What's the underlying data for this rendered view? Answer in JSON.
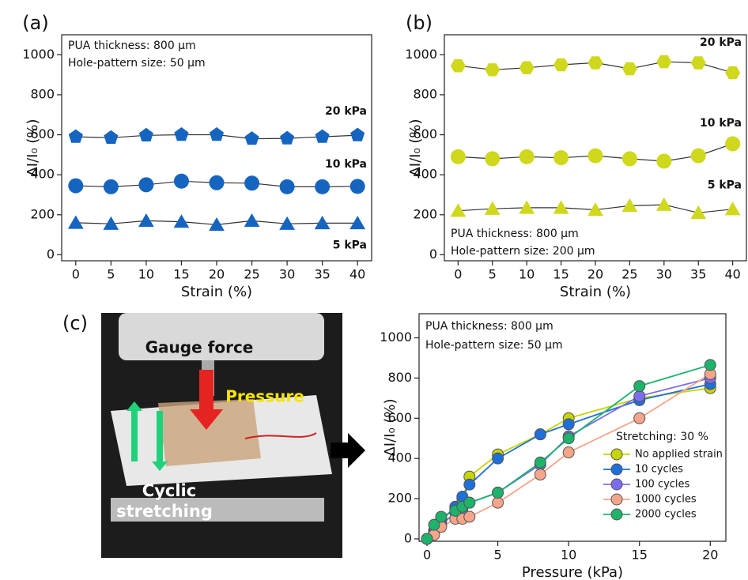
{
  "chart_data": [
    {
      "type": "line",
      "panel": "(a)",
      "xlabel": "Strain (%)",
      "ylabel": "ΔI/I₀ (%)",
      "annotations": [
        "PUA thickness: 800 μm",
        "Hole-pattern size: 50 μm"
      ],
      "x": [
        0,
        5,
        10,
        15,
        20,
        25,
        30,
        35,
        40
      ],
      "xlim": [
        -2,
        42
      ],
      "ylim": [
        -30,
        1100
      ],
      "xticks": [
        0,
        5,
        10,
        15,
        20,
        25,
        30,
        35,
        40
      ],
      "yticks": [
        0,
        200,
        400,
        600,
        800,
        1000
      ],
      "line_color": "#333333",
      "series": [
        {
          "name": "20 kPa",
          "color": "#1565c0",
          "marker": "pentagon",
          "values": [
            590,
            585,
            597,
            600,
            600,
            580,
            582,
            590,
            598
          ]
        },
        {
          "name": "10 kPa",
          "color": "#1565c0",
          "marker": "circle",
          "values": [
            345,
            340,
            350,
            368,
            360,
            358,
            340,
            340,
            342
          ]
        },
        {
          "name": "5 kPa",
          "color": "#1565c0",
          "marker": "triangle",
          "values": [
            160,
            155,
            170,
            165,
            150,
            170,
            155,
            158,
            158
          ]
        }
      ]
    },
    {
      "type": "line",
      "panel": "(b)",
      "xlabel": "Strain (%)",
      "ylabel": "ΔI/I₀ (%)",
      "annotations": [
        "PUA thickness: 800 μm",
        "Hole-pattern size: 200 μm"
      ],
      "x": [
        0,
        5,
        10,
        15,
        20,
        25,
        30,
        35,
        40
      ],
      "xlim": [
        -2,
        42
      ],
      "ylim": [
        -30,
        1100
      ],
      "xticks": [
        0,
        5,
        10,
        15,
        20,
        25,
        30,
        35,
        40
      ],
      "yticks": [
        0,
        200,
        400,
        600,
        800,
        1000
      ],
      "line_color": "#333333",
      "series": [
        {
          "name": "20 kPa",
          "color": "#cfd81c",
          "marker": "hexagon",
          "values": [
            945,
            925,
            935,
            950,
            960,
            930,
            965,
            960,
            910
          ]
        },
        {
          "name": "10 kPa",
          "color": "#cfd81c",
          "marker": "circle",
          "values": [
            490,
            480,
            490,
            485,
            495,
            480,
            468,
            495,
            555
          ]
        },
        {
          "name": "5 kPa",
          "color": "#cfd81c",
          "marker": "triangle",
          "values": [
            220,
            230,
            235,
            235,
            225,
            245,
            250,
            210,
            228
          ]
        }
      ]
    },
    {
      "type": "line",
      "panel": "(c)",
      "xlabel": "Pressure (kPa)",
      "ylabel": "ΔI/I₀ (%)",
      "annotations": [
        "PUA thickness: 800 μm",
        "Hole-pattern size: 50 μm"
      ],
      "legend_title": "Stretching: 30 %",
      "legend": "lower right",
      "x": [
        0,
        0.5,
        1,
        2,
        2.5,
        3,
        5,
        8,
        10,
        15,
        20
      ],
      "xlim": [
        -0.56,
        21.1
      ],
      "ylim": [
        -12,
        1120
      ],
      "xticks": [
        0,
        5,
        10,
        15,
        20
      ],
      "yticks": [
        0,
        200,
        400,
        600,
        800,
        1000
      ],
      "series": [
        {
          "name": "No applied strain",
          "color": "#c8d400",
          "marker": "circle",
          "values": [
            0,
            40,
            100,
            150,
            200,
            310,
            420,
            520,
            600,
            700,
            750
          ]
        },
        {
          "name": "10 cycles",
          "color": "#1e6fd9",
          "marker": "circle",
          "values": [
            0,
            40,
            90,
            160,
            210,
            270,
            400,
            520,
            570,
            690,
            770
          ]
        },
        {
          "name": "100 cycles",
          "color": "#7b6cf0",
          "marker": "circle",
          "values": [
            0,
            30,
            70,
            130,
            150,
            180,
            230,
            370,
            510,
            710,
            800
          ]
        },
        {
          "name": "1000 cycles",
          "color": "#f4a58a",
          "marker": "circle",
          "values": [
            0,
            20,
            60,
            100,
            100,
            110,
            180,
            320,
            430,
            600,
            820
          ]
        },
        {
          "name": "2000 cycles",
          "color": "#1db36b",
          "marker": "circle",
          "values": [
            0,
            70,
            110,
            140,
            160,
            180,
            230,
            380,
            500,
            760,
            865
          ]
        }
      ]
    }
  ],
  "photo": {
    "texts": [
      "Gauge force",
      "Pressure",
      "Cyclic",
      "stretching"
    ]
  }
}
